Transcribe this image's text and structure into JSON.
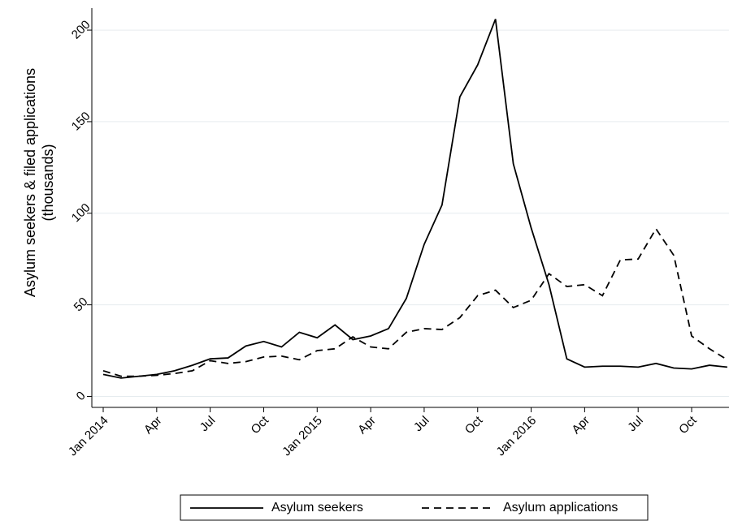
{
  "chart_data": {
    "type": "line",
    "y_label": [
      "Asylum seekers & filed applications",
      "(thousands)"
    ],
    "categories": [
      "Jan 2014",
      null,
      null,
      "Apr",
      null,
      null,
      "Jul",
      null,
      null,
      "Oct",
      null,
      null,
      "Jan 2015",
      null,
      null,
      "Apr",
      null,
      null,
      "Jul",
      null,
      null,
      "Oct",
      null,
      null,
      "Jan 2016",
      null,
      null,
      "Apr",
      null,
      null,
      "Jul",
      null,
      null,
      "Oct",
      null,
      null
    ],
    "series": [
      {
        "name": "Asylum seekers",
        "color": "#000000",
        "dash": "solid",
        "values": [
          12,
          10,
          11,
          12,
          14,
          17,
          20.5,
          21,
          27.5,
          30,
          27,
          35,
          32,
          39,
          31,
          33,
          37,
          53.5,
          83,
          104.5,
          163.5,
          181,
          206,
          127,
          92,
          61,
          20.5,
          16,
          16.5,
          16.5,
          16,
          18,
          15.5,
          15,
          17,
          16
        ]
      },
      {
        "name": "Asylum applications",
        "color": "#000000",
        "dash": "dashed",
        "values": [
          14,
          11,
          11,
          11.5,
          12.5,
          14,
          19.5,
          18,
          19,
          21.5,
          22,
          20,
          25,
          26,
          32.5,
          27,
          26,
          35,
          37,
          36.5,
          43,
          55,
          58,
          48.5,
          52.5,
          67,
          60,
          61,
          55,
          74.5,
          75,
          91.5,
          77,
          33,
          26,
          20
        ]
      }
    ],
    "ylim": [
      -6,
      212
    ],
    "yticks": [
      0,
      50,
      100,
      150,
      200
    ],
    "grid": true,
    "legend": "bottom"
  }
}
